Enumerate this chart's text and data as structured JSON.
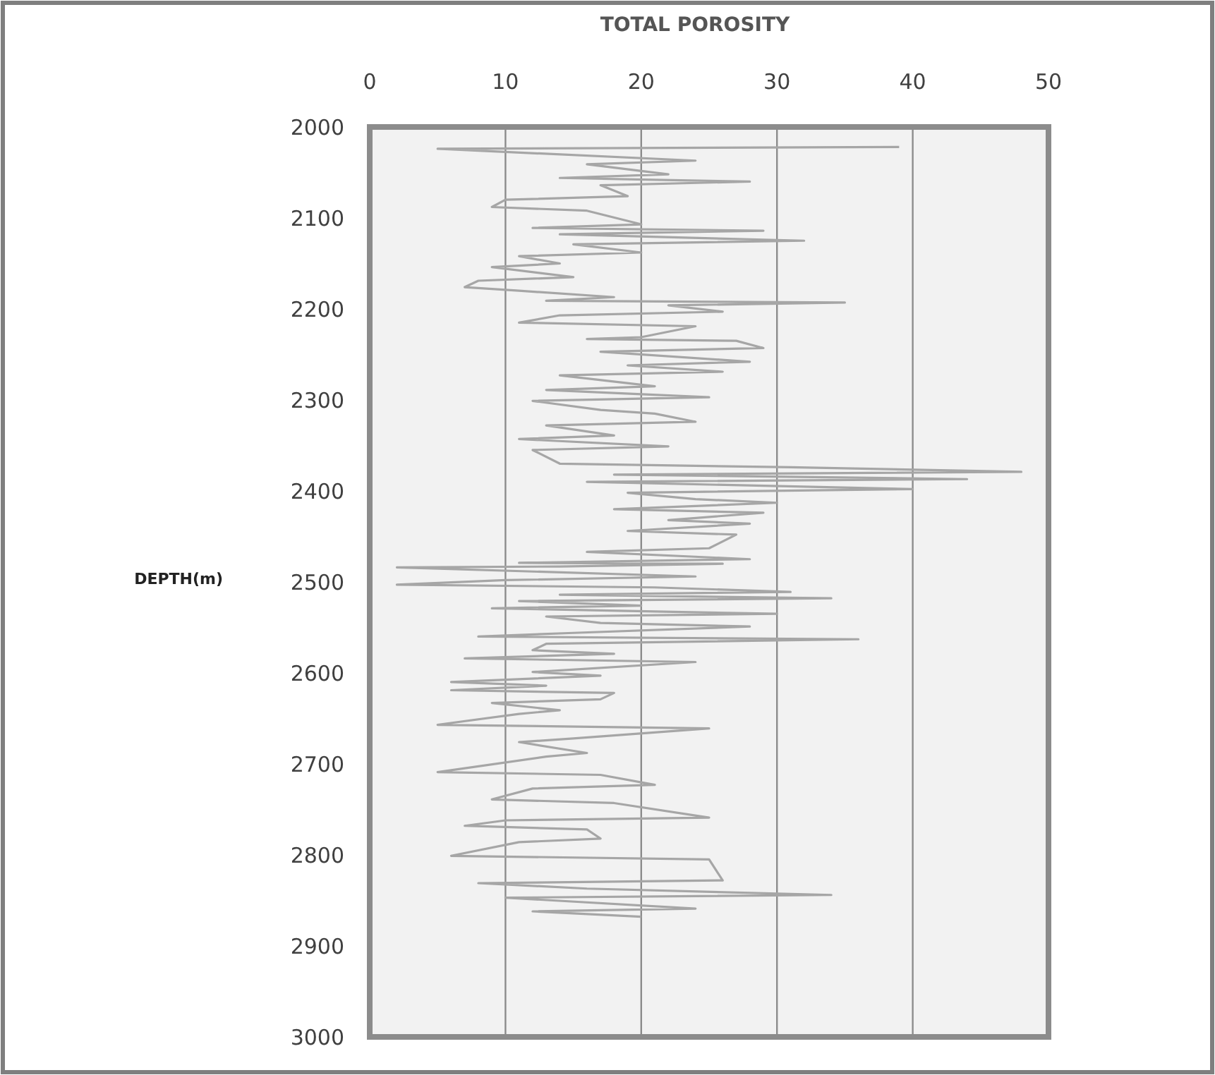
{
  "chart_data": {
    "type": "line",
    "xlabel": "TOTAL POROSITY",
    "ylabel": "DEPTH(m)",
    "xlim": [
      0,
      50
    ],
    "xticks": [
      0,
      10,
      20,
      30,
      40,
      50
    ],
    "ylim": [
      3000,
      2000
    ],
    "yticks": [
      2000,
      2100,
      2200,
      2300,
      2400,
      2500,
      2600,
      2700,
      2800,
      2900,
      3000
    ],
    "grid": "x",
    "marker": "none",
    "line_style": "solid",
    "series": [
      {
        "color": "#a6a6a6",
        "x": [
          39,
          5,
          24,
          16,
          22,
          14,
          28,
          17,
          19,
          10,
          9,
          16,
          20,
          12,
          29,
          14,
          32,
          15,
          20,
          11,
          14,
          9,
          15,
          8,
          7,
          11,
          18,
          13,
          35,
          22,
          26,
          14,
          11,
          24,
          20,
          16,
          27,
          29,
          17,
          28,
          19,
          26,
          14,
          21,
          13,
          25,
          12,
          17,
          21,
          24,
          13,
          18,
          11,
          22,
          12,
          14,
          31,
          48,
          18,
          44,
          16,
          40,
          19,
          24,
          30,
          18,
          29,
          22,
          28,
          19,
          27,
          25,
          16,
          28,
          11,
          26,
          14,
          2,
          24,
          10,
          2,
          21,
          31,
          14,
          34,
          11,
          20,
          9,
          30,
          13,
          17,
          28,
          15,
          8,
          36,
          13,
          12,
          18,
          7,
          24,
          12,
          17,
          6,
          13,
          6,
          18,
          17,
          9,
          14,
          11,
          5,
          25,
          15,
          11,
          16,
          13,
          5,
          17,
          21,
          12,
          9,
          18,
          25,
          10,
          7,
          16,
          17,
          11,
          6,
          25,
          26,
          8,
          16,
          34,
          10,
          24,
          12,
          20
        ],
        "values": [
          2022,
          2024,
          2037,
          2041,
          2052,
          2056,
          2060,
          2064,
          2076,
          2080,
          2088,
          2092,
          2107,
          2111,
          2114,
          2118,
          2125,
          2129,
          2138,
          2142,
          2150,
          2154,
          2165,
          2169,
          2176,
          2180,
          2187,
          2191,
          2193,
          2196,
          2203,
          2207,
          2215,
          2219,
          2231,
          2233,
          2235,
          2243,
          2247,
          2258,
          2262,
          2269,
          2273,
          2285,
          2289,
          2297,
          2301,
          2311,
          2315,
          2324,
          2328,
          2339,
          2343,
          2351,
          2355,
          2370,
          2374,
          2379,
          2382,
          2387,
          2390,
          2398,
          2402,
          2409,
          2413,
          2420,
          2424,
          2432,
          2436,
          2444,
          2448,
          2463,
          2467,
          2475,
          2479,
          2480,
          2483,
          2484,
          2494,
          2498,
          2503,
          2506,
          2511,
          2514,
          2518,
          2521,
          2526,
          2529,
          2535,
          2538,
          2545,
          2549,
          2556,
          2560,
          2563,
          2568,
          2575,
          2579,
          2584,
          2588,
          2599,
          2603,
          2610,
          2614,
          2619,
          2622,
          2629,
          2633,
          2641,
          2645,
          2657,
          2661,
          2672,
          2676,
          2688,
          2692,
          2709,
          2712,
          2723,
          2727,
          2739,
          2743,
          2759,
          2762,
          2768,
          2772,
          2782,
          2786,
          2801,
          2805,
          2828,
          2831,
          2837,
          2844,
          2847,
          2859,
          2862,
          2868
        ]
      }
    ]
  }
}
